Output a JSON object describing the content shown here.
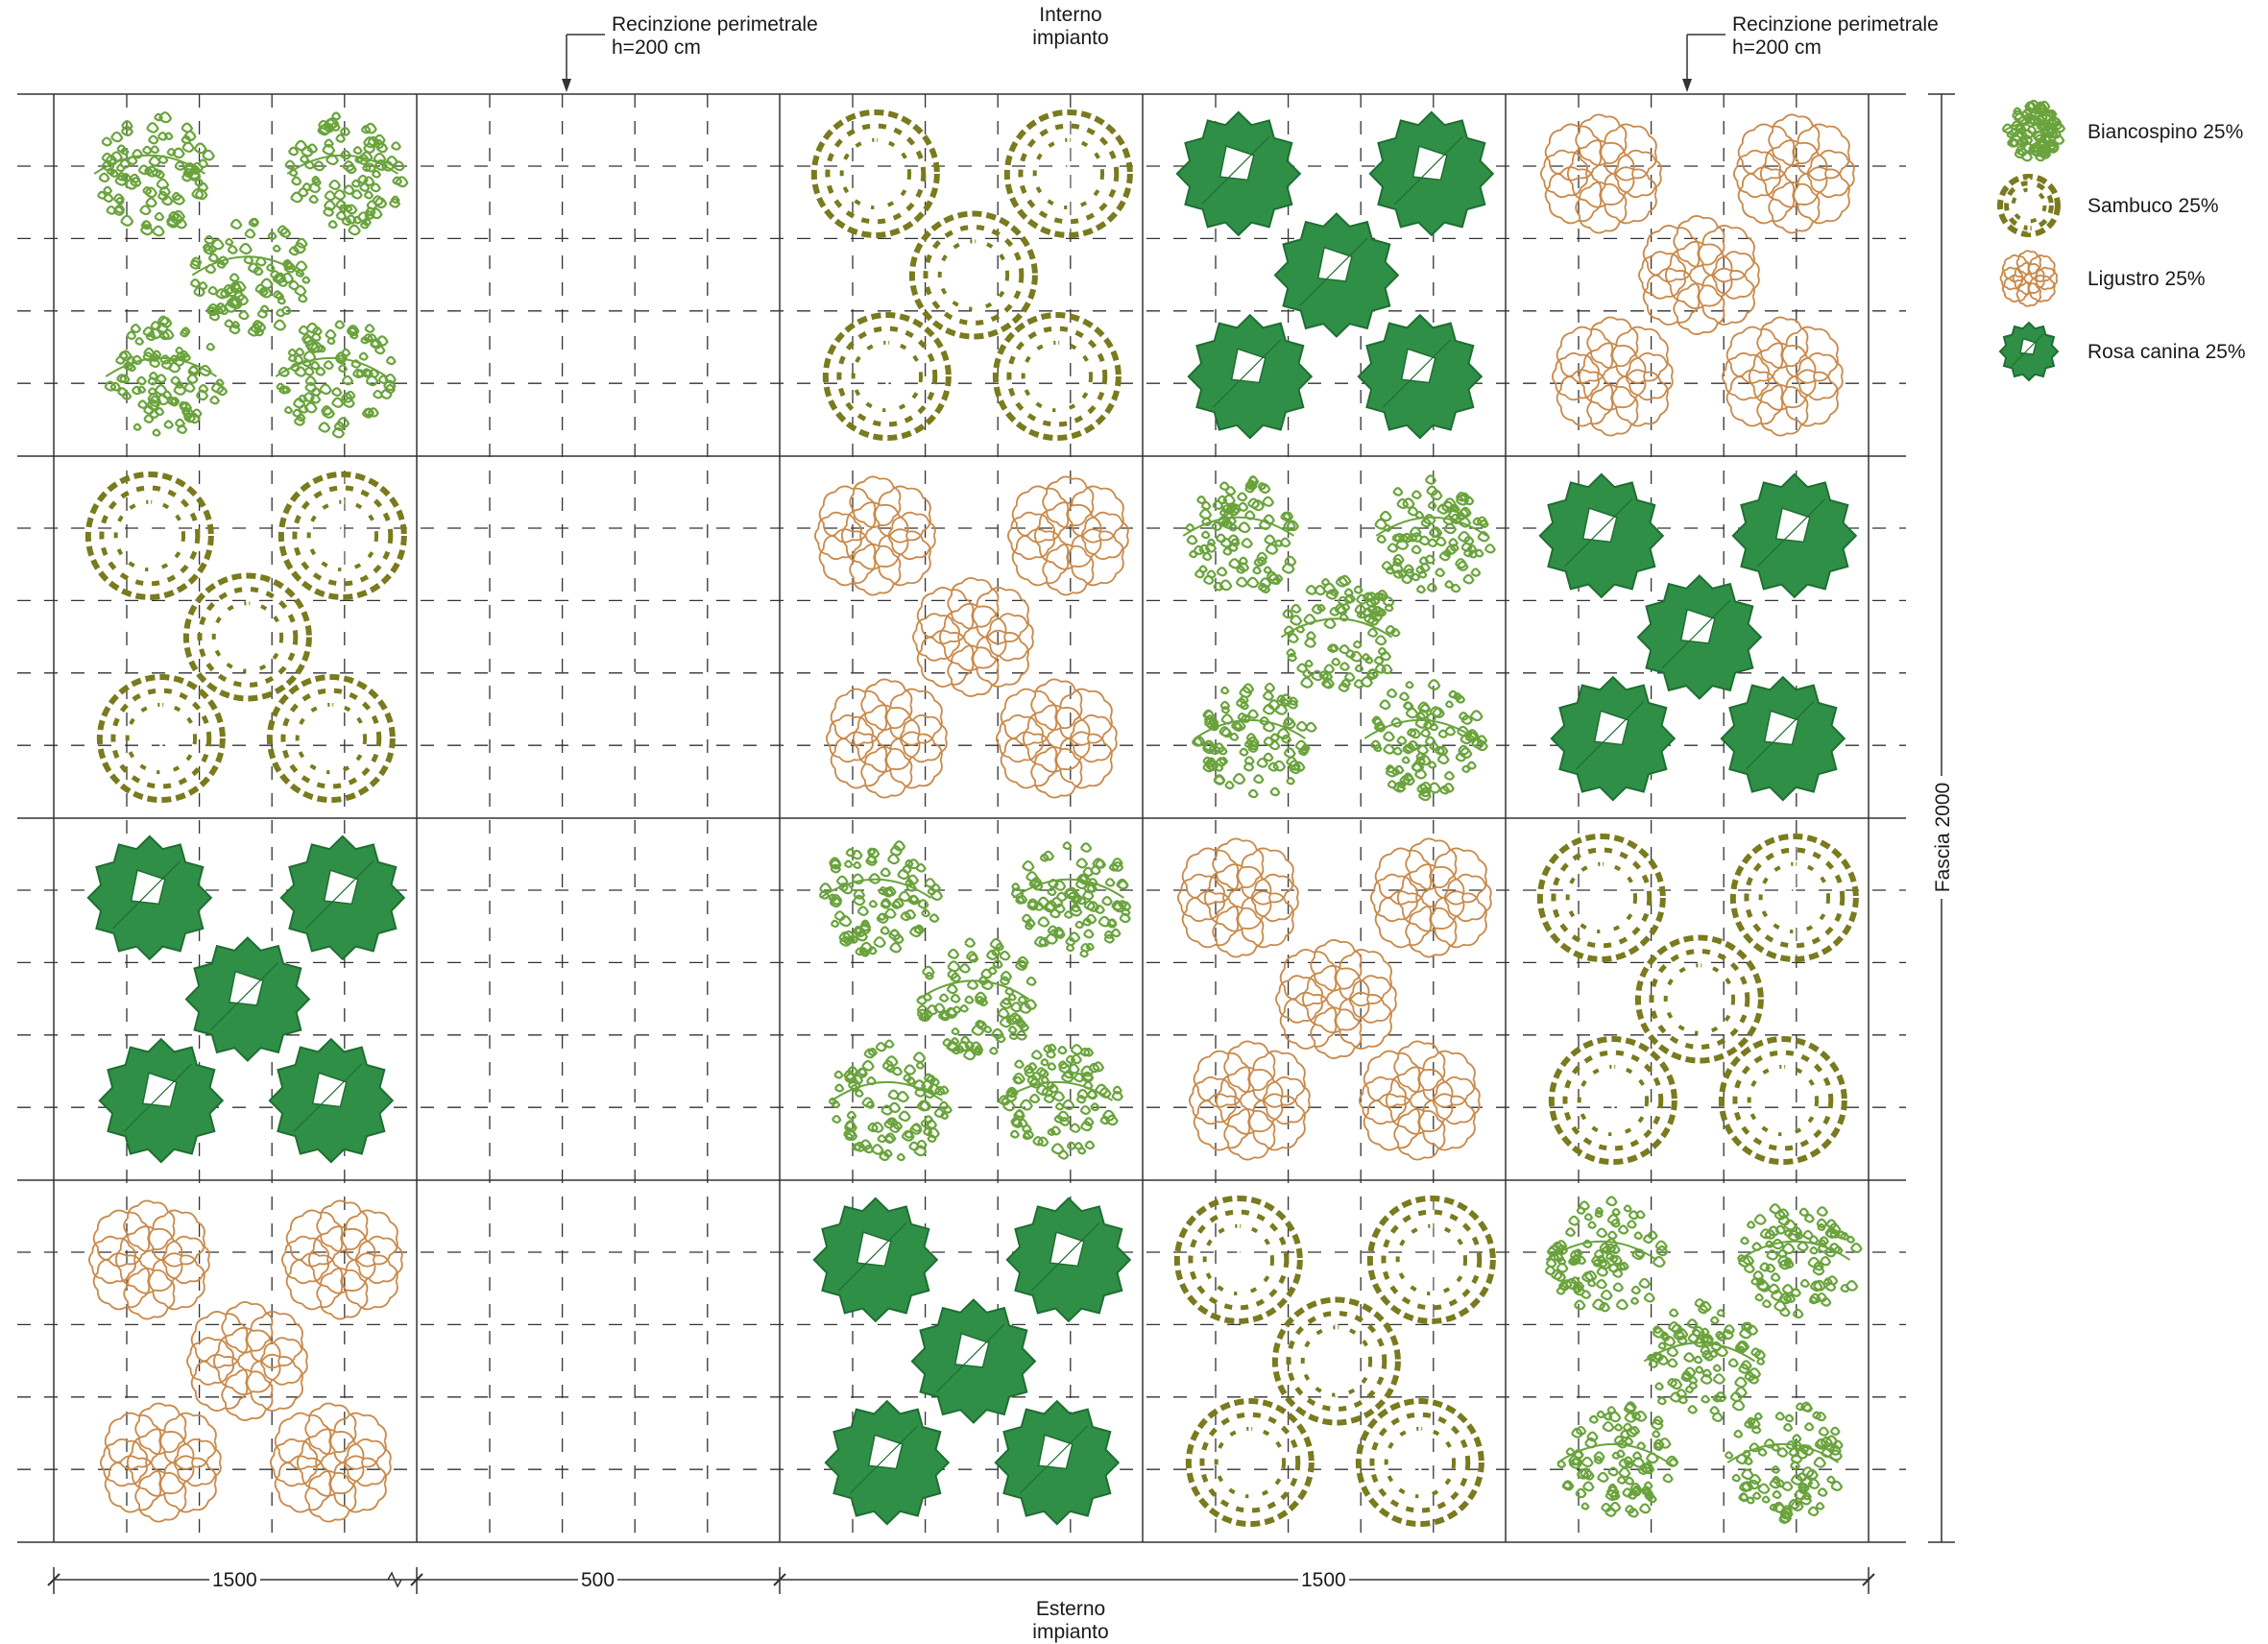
{
  "annotations": {
    "fence_left": {
      "line1": "Recinzione perimetrale",
      "line2": "h=200 cm"
    },
    "fence_right": {
      "line1": "Recinzione perimetrale",
      "line2": "h=200 cm"
    },
    "inside": {
      "line1": "Interno",
      "line2": "impianto"
    },
    "outside": {
      "line1": "Esterno",
      "line2": "impianto"
    }
  },
  "dimensions": {
    "left": "1500",
    "middle": "500",
    "right": "1500",
    "band": "Fascia 2000"
  },
  "legend": [
    {
      "key": "biancospino",
      "label": "Biancospino 25%",
      "icon": "biancospino-icon"
    },
    {
      "key": "sambuco",
      "label": "Sambuco 25%",
      "icon": "sambuco-icon"
    },
    {
      "key": "ligustro",
      "label": "Ligustro 25%",
      "icon": "ligustro-icon"
    },
    {
      "key": "rosa",
      "label": "Rosa canina 25%",
      "icon": "rosa-canina-icon"
    }
  ],
  "species_colors": {
    "biancospino": "#6aa33c",
    "sambuco": "#7a7a1e",
    "ligustro": "#c98a4b",
    "rosa": "#2f8f46"
  },
  "planting_cells": [
    {
      "row": 1,
      "col": 1,
      "species": "biancospino"
    },
    {
      "row": 1,
      "col": 3,
      "species": "sambuco"
    },
    {
      "row": 1,
      "col": 4,
      "species": "rosa"
    },
    {
      "row": 1,
      "col": 5,
      "species": "ligustro"
    },
    {
      "row": 2,
      "col": 1,
      "species": "sambuco"
    },
    {
      "row": 2,
      "col": 3,
      "species": "ligustro"
    },
    {
      "row": 2,
      "col": 4,
      "species": "biancospino"
    },
    {
      "row": 2,
      "col": 5,
      "species": "rosa"
    },
    {
      "row": 3,
      "col": 1,
      "species": "rosa"
    },
    {
      "row": 3,
      "col": 3,
      "species": "biancospino"
    },
    {
      "row": 3,
      "col": 4,
      "species": "ligustro"
    },
    {
      "row": 3,
      "col": 5,
      "species": "sambuco"
    },
    {
      "row": 4,
      "col": 1,
      "species": "ligustro"
    },
    {
      "row": 4,
      "col": 3,
      "species": "rosa"
    },
    {
      "row": 4,
      "col": 4,
      "species": "sambuco"
    },
    {
      "row": 4,
      "col": 5,
      "species": "biancospino"
    }
  ]
}
